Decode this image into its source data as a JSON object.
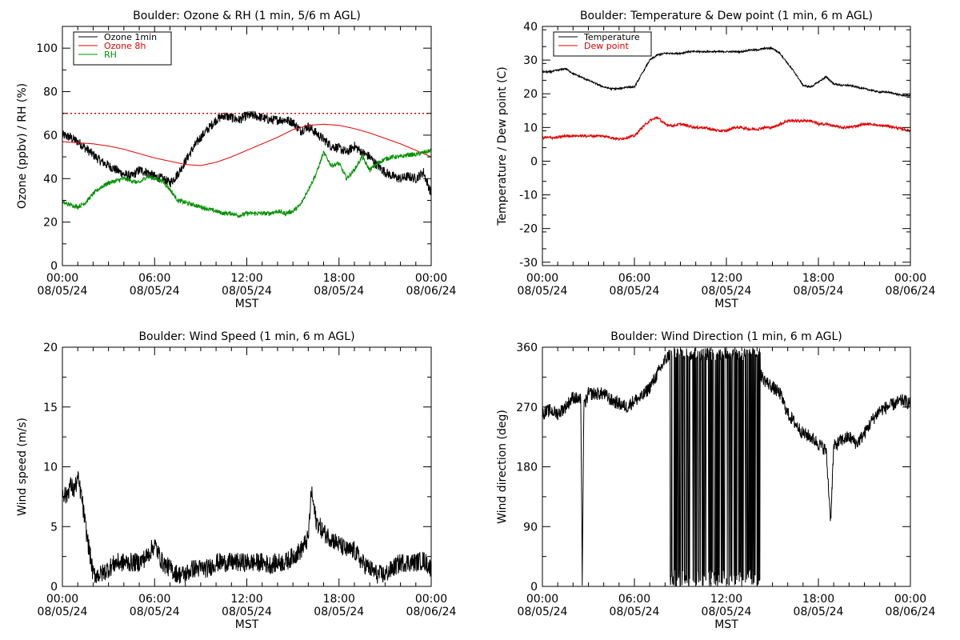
{
  "chart_data": [
    {
      "id": "ozone-rh",
      "type": "line",
      "title": "Boulder: Ozone & RH (1 min, 5/6 m AGL)",
      "xlabel": "MST",
      "ylabel": "Ozone (ppbv) / RH (%)",
      "x_ticks": [
        {
          "time": "00:00",
          "date": "08/05/24"
        },
        {
          "time": "06:00",
          "date": "08/05/24"
        },
        {
          "time": "12:00",
          "date": "08/05/24"
        },
        {
          "time": "18:00",
          "date": "08/05/24"
        },
        {
          "time": "00:00",
          "date": "08/06/24"
        }
      ],
      "xlim": [
        0,
        24
      ],
      "ylim": [
        0,
        110
      ],
      "yticks": [
        0,
        20,
        40,
        60,
        80,
        100
      ],
      "legend_position": "top-left",
      "reference_line": {
        "y": 70,
        "style": "dotted",
        "color": "#d40000"
      },
      "series": [
        {
          "name": "Ozone 1min",
          "color": "#000000",
          "noise": 2.2,
          "x": [
            0,
            0.5,
            1,
            1.5,
            2,
            2.5,
            3,
            3.5,
            4,
            4.5,
            5,
            5.5,
            6,
            6.5,
            7,
            7.5,
            8,
            8.5,
            9,
            9.5,
            10,
            10.5,
            11,
            11.5,
            12,
            12.5,
            13,
            13.5,
            14,
            14.5,
            15,
            15.5,
            16,
            16.5,
            17,
            17.5,
            18,
            18.5,
            19,
            19.5,
            20,
            20.5,
            21,
            21.5,
            22,
            22.5,
            23,
            23.5,
            24
          ],
          "y": [
            60,
            59,
            57,
            54,
            51,
            48,
            46,
            44,
            42,
            41,
            44,
            43,
            41,
            40,
            38,
            42,
            48,
            54,
            59,
            63,
            67,
            69,
            68,
            67,
            69,
            69,
            68,
            67,
            67,
            67,
            66,
            62,
            64,
            61,
            58,
            55,
            54,
            52,
            55,
            52,
            50,
            46,
            43,
            41,
            40,
            41,
            40,
            43,
            33
          ]
        },
        {
          "name": "Ozone 8h",
          "color": "#e00000",
          "noise": 0,
          "x": [
            0,
            1,
            2,
            3,
            4,
            5,
            6,
            7,
            8,
            9,
            10,
            11,
            12,
            13,
            14,
            15,
            16,
            17,
            18,
            19,
            20,
            21,
            22,
            23,
            24
          ],
          "y": [
            57,
            56.5,
            56,
            55,
            53.5,
            51.5,
            49.5,
            48,
            46.5,
            46,
            47.5,
            50,
            53,
            56,
            59,
            62.5,
            64.5,
            65,
            64.5,
            63,
            61,
            58.5,
            56,
            53,
            50
          ]
        },
        {
          "name": "RH",
          "color": "#009000",
          "noise": 1.0,
          "x": [
            0,
            0.5,
            1,
            1.5,
            2,
            2.5,
            3,
            3.5,
            4,
            4.5,
            5,
            5.5,
            6,
            6.5,
            7,
            7.5,
            8,
            8.5,
            9,
            9.5,
            10,
            10.5,
            11,
            11.5,
            12,
            12.5,
            13,
            13.5,
            14,
            14.5,
            15,
            15.5,
            16,
            16.5,
            17,
            17.5,
            18,
            18.5,
            19,
            19.5,
            20,
            20.5,
            21,
            21.5,
            22,
            22.5,
            23,
            23.5,
            24
          ],
          "y": [
            29,
            28,
            27,
            29,
            33,
            36,
            38,
            39,
            40,
            39,
            38,
            41,
            40,
            39,
            35,
            30,
            29,
            28,
            27,
            26,
            25,
            24,
            24,
            23,
            24,
            24,
            24,
            24,
            25,
            24,
            25,
            28,
            35,
            42,
            52,
            46,
            47,
            40,
            44,
            50,
            44,
            47,
            49,
            50,
            50,
            51,
            51,
            52,
            53
          ]
        }
      ]
    },
    {
      "id": "temp-dew",
      "type": "line",
      "title": "Boulder: Temperature & Dew point (1 min, 6 m AGL)",
      "xlabel": "MST",
      "ylabel": "Temperature / Dew point (C)",
      "x_ticks": [
        {
          "time": "00:00",
          "date": "08/05/24"
        },
        {
          "time": "06:00",
          "date": "08/05/24"
        },
        {
          "time": "12:00",
          "date": "08/05/24"
        },
        {
          "time": "18:00",
          "date": "08/05/24"
        },
        {
          "time": "00:00",
          "date": "08/06/24"
        }
      ],
      "xlim": [
        0,
        24
      ],
      "ylim": [
        -31,
        40
      ],
      "yticks": [
        -30,
        -20,
        -10,
        0,
        10,
        20,
        30,
        40
      ],
      "legend_position": "top-left",
      "series": [
        {
          "name": "Temperature",
          "color": "#000000",
          "noise": 0.25,
          "x": [
            0,
            0.5,
            1,
            1.5,
            2,
            2.5,
            3,
            3.5,
            4,
            4.5,
            5,
            5.5,
            6,
            6.5,
            7,
            7.5,
            8,
            8.5,
            9,
            9.5,
            10,
            10.5,
            11,
            11.5,
            12,
            12.5,
            13,
            13.5,
            14,
            14.5,
            15,
            15.5,
            16,
            16.5,
            17,
            17.5,
            18,
            18.5,
            19,
            19.5,
            20,
            20.5,
            21,
            21.5,
            22,
            22.5,
            23,
            23.5,
            24
          ],
          "y": [
            26.5,
            26.5,
            27,
            27.5,
            26,
            25,
            24,
            23,
            22,
            21.5,
            21.5,
            22,
            22,
            26,
            30,
            31.5,
            32,
            32,
            32,
            32.5,
            32.5,
            32.5,
            32.5,
            32.5,
            32.5,
            32.5,
            32.5,
            33,
            33,
            33.5,
            33.5,
            32,
            29,
            26,
            22.5,
            22,
            23.5,
            25,
            23,
            22.5,
            22.5,
            22,
            21.5,
            21,
            20.5,
            20.5,
            20,
            19.5,
            19.5
          ]
        },
        {
          "name": "Dew point",
          "color": "#e00000",
          "noise": 0.4,
          "x": [
            0,
            0.5,
            1,
            1.5,
            2,
            2.5,
            3,
            3.5,
            4,
            4.5,
            5,
            5.5,
            6,
            6.5,
            7,
            7.5,
            8,
            8.5,
            9,
            9.5,
            10,
            10.5,
            11,
            11.5,
            12,
            12.5,
            13,
            13.5,
            14,
            14.5,
            15,
            15.5,
            16,
            16.5,
            17,
            17.5,
            18,
            18.5,
            19,
            19.5,
            20,
            20.5,
            21,
            21.5,
            22,
            22.5,
            23,
            23.5,
            24
          ],
          "y": [
            7,
            7,
            7,
            7.5,
            7.5,
            7.5,
            7.5,
            7.5,
            7.5,
            7,
            6.5,
            7,
            7.5,
            10,
            12,
            13,
            11,
            10.5,
            11,
            10.5,
            10,
            10,
            9.5,
            9,
            9,
            10,
            10,
            9.5,
            9.5,
            10,
            10,
            11,
            12,
            12,
            12,
            12,
            11,
            11,
            10.5,
            10,
            10,
            10.5,
            11,
            11,
            10.5,
            10.5,
            10,
            9.5,
            9
          ]
        }
      ]
    },
    {
      "id": "wind-speed",
      "type": "line",
      "title": "Boulder: Wind Speed (1 min, 6 m AGL)",
      "xlabel": "MST",
      "ylabel": "Wind speed (m/s)",
      "x_ticks": [
        {
          "time": "00:00",
          "date": "08/05/24"
        },
        {
          "time": "06:00",
          "date": "08/05/24"
        },
        {
          "time": "12:00",
          "date": "08/05/24"
        },
        {
          "time": "18:00",
          "date": "08/05/24"
        },
        {
          "time": "00:00",
          "date": "08/06/24"
        }
      ],
      "xlim": [
        0,
        24
      ],
      "ylim": [
        0,
        20
      ],
      "yticks": [
        0,
        5,
        10,
        15,
        20
      ],
      "series": [
        {
          "name": "",
          "color": "#000000",
          "noise": 0.8,
          "x": [
            0,
            0.25,
            0.5,
            0.75,
            1,
            1.25,
            1.5,
            1.75,
            2,
            2.5,
            3,
            3.5,
            4,
            4.5,
            5,
            5.5,
            6,
            6.5,
            7,
            7.5,
            8,
            8.5,
            9,
            9.5,
            10,
            10.5,
            11,
            11.5,
            12,
            12.5,
            13,
            13.5,
            14,
            14.5,
            15,
            15.5,
            16,
            16.2,
            16.5,
            17,
            17.5,
            18,
            18.5,
            19,
            19.5,
            20,
            20.5,
            21,
            21.5,
            22,
            22.5,
            23,
            23.5,
            24
          ],
          "y": [
            8,
            7.5,
            8.5,
            8,
            9,
            7.5,
            5,
            3,
            1,
            1,
            1.5,
            2,
            2,
            2,
            2,
            2.5,
            3.5,
            2,
            1.5,
            1,
            1,
            1.5,
            1.5,
            1.5,
            2,
            2,
            2,
            2,
            2,
            2,
            2,
            1.8,
            2,
            2,
            2.5,
            3,
            4,
            8,
            5.5,
            4.5,
            4,
            3.5,
            3,
            3,
            2,
            1.5,
            1,
            1,
            1.5,
            2,
            2,
            2,
            2.2,
            1.5
          ]
        }
      ]
    },
    {
      "id": "wind-direction",
      "type": "line",
      "title": "Boulder: Wind Direction (1 min, 6 m AGL)",
      "xlabel": "MST",
      "ylabel": "Wind direction (deg)",
      "x_ticks": [
        {
          "time": "00:00",
          "date": "08/05/24"
        },
        {
          "time": "06:00",
          "date": "08/05/24"
        },
        {
          "time": "12:00",
          "date": "08/05/24"
        },
        {
          "time": "18:00",
          "date": "08/05/24"
        },
        {
          "time": "00:00",
          "date": "08/06/24"
        }
      ],
      "xlim": [
        0,
        24
      ],
      "ylim": [
        0,
        360
      ],
      "yticks": [
        0,
        90,
        180,
        270,
        360
      ],
      "series": [
        {
          "name": "",
          "color": "#000000",
          "noise": 10,
          "wrap_segments": [
            [
              8.3,
              14.2
            ]
          ],
          "x": [
            0,
            0.5,
            1,
            1.5,
            2,
            2.5,
            2.6,
            2.7,
            3,
            3.5,
            4,
            4.5,
            5,
            5.5,
            6,
            6.5,
            7,
            7.5,
            8,
            8.3,
            14.2,
            14.5,
            15,
            15.5,
            16,
            16.5,
            17,
            17.5,
            18,
            18.5,
            18.8,
            19,
            19.5,
            20,
            20.5,
            21,
            21.5,
            22,
            22.5,
            23,
            23.5,
            24
          ],
          "y": [
            260,
            265,
            260,
            270,
            285,
            280,
            10,
            270,
            290,
            290,
            290,
            280,
            275,
            270,
            280,
            285,
            300,
            320,
            340,
            350,
            320,
            310,
            300,
            290,
            260,
            245,
            230,
            225,
            215,
            205,
            100,
            210,
            220,
            225,
            215,
            230,
            250,
            265,
            270,
            275,
            280,
            275
          ]
        }
      ]
    }
  ]
}
